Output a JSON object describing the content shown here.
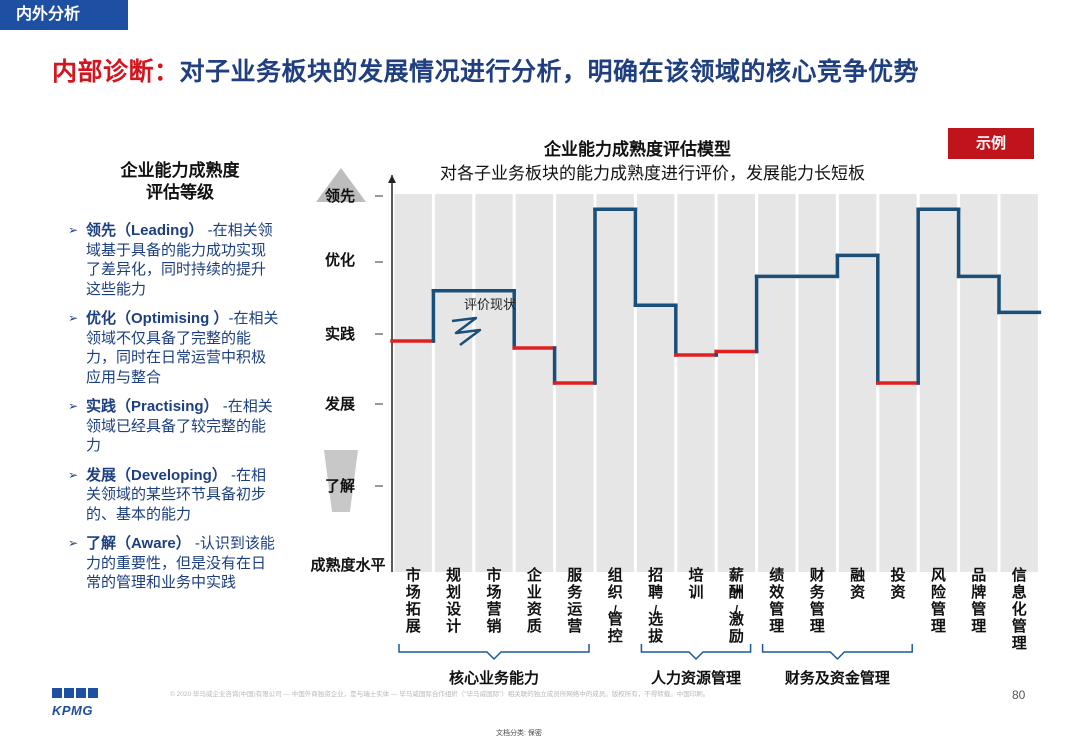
{
  "section_tag": "内外分析",
  "headline": {
    "red": "内部诊断：",
    "blue": "对子业务板块的发展情况进行分析，明确在该领域的核心竞争优势"
  },
  "example_label": "示例",
  "left_panel": {
    "title_lines": [
      "企业能力成熟度",
      "评估等级"
    ],
    "levels": [
      {
        "name": "领先（Leading）",
        "desc": " -在相关领域基于具备的能力成功实现了差异化，同时持续的提升这些能力"
      },
      {
        "name": "优化（Optimising ）",
        "desc": "-在相关领域不仅具备了完整的能力，同时在日常运营中积极应用与整合"
      },
      {
        "name": "实践（Practising）",
        "desc": " -在相关领域已经具备了较完整的能力"
      },
      {
        "name": "发展（Developing）",
        "desc": " -在相关领域的某些环节具备初步的、基本的能力"
      },
      {
        "name": "了解（Aware）",
        "desc": " -认识到该能力的重要性，但是没有在日常的管理和业务中实践"
      }
    ]
  },
  "chart_data": {
    "type": "line",
    "title": "企业能力成熟度评估模型",
    "subtitle": "对各子业务板块的能力成熟度进行评价，发展能力长短板",
    "ylabel": "成熟度水平",
    "y_levels": [
      "了解",
      "发展",
      "实践",
      "优化",
      "领先"
    ],
    "ylim": [
      0,
      5
    ],
    "annotation": "评价现状",
    "categories": [
      "市场拓展",
      "规划设计",
      "市场营销",
      "企业资质",
      "服务运营",
      "组织/管控",
      "招聘/选拔",
      "培训",
      "薪酬/激励",
      "绩效管理",
      "财务管理",
      "融资",
      "投资",
      "风险管理",
      "品牌管理",
      "信息化管理"
    ],
    "values": [
      2.9,
      3.6,
      3.6,
      2.8,
      2.3,
      4.8,
      3.4,
      2.7,
      2.75,
      3.8,
      3.8,
      4.1,
      2.3,
      4.8,
      3.8,
      3.3
    ],
    "highlight_color": "#e02020",
    "line_color": "#1a4f7a",
    "highlight_below": 3.0,
    "groups": [
      {
        "label": "核心业务能力",
        "from": 0,
        "to": 4
      },
      {
        "label": "人力资源管理",
        "from": 6,
        "to": 8
      },
      {
        "label": "财务及资金管理",
        "from": 9,
        "to": 12
      }
    ]
  },
  "footer": {
    "brand": "KPMG",
    "copyright": "© 2020 毕马威企业咨询(中国)有限公司 — 中国外商独资企业，是与瑞士实体 — 毕马威国际合作组织（“毕马威国际”）相关联的独立成员所网络中的成员。版权所有，不得转载。中国印刷。",
    "page": "80",
    "classification": "文档分类: 保密"
  }
}
